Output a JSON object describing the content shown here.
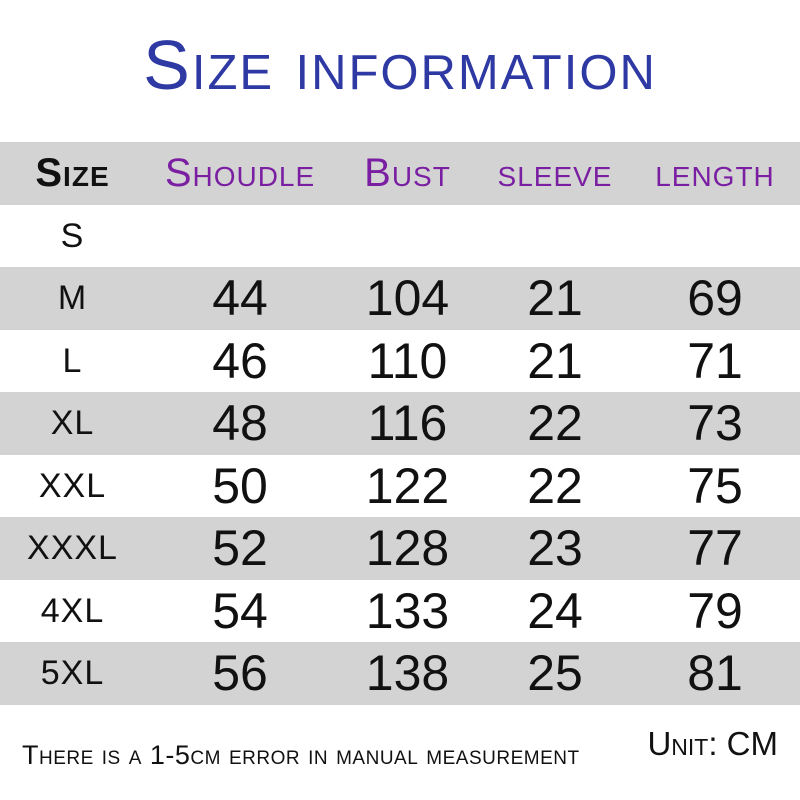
{
  "colors": {
    "title": "#2e39a3",
    "accent": "#7a1fa2",
    "text": "#111111",
    "stripe": "#d3d3d3",
    "bg": "#ffffff"
  },
  "title": {
    "text": "Size information"
  },
  "table": {
    "columns": [
      "Size",
      "Shoudle",
      "Bust",
      "sleeve",
      "length"
    ],
    "rows": [
      {
        "size": "S",
        "shoulder": "",
        "bust": "",
        "sleeve": "",
        "length": ""
      },
      {
        "size": "M",
        "shoulder": "44",
        "bust": "104",
        "sleeve": "21",
        "length": "69"
      },
      {
        "size": "L",
        "shoulder": "46",
        "bust": "110",
        "sleeve": "21",
        "length": "71"
      },
      {
        "size": "XL",
        "shoulder": "48",
        "bust": "116",
        "sleeve": "22",
        "length": "73"
      },
      {
        "size": "XXL",
        "shoulder": "50",
        "bust": "122",
        "sleeve": "22",
        "length": "75"
      },
      {
        "size": "XXXL",
        "shoulder": "52",
        "bust": "128",
        "sleeve": "23",
        "length": "77"
      },
      {
        "size": "4XL",
        "shoulder": "54",
        "bust": "133",
        "sleeve": "24",
        "length": "79"
      },
      {
        "size": "5XL",
        "shoulder": "56",
        "bust": "138",
        "sleeve": "25",
        "length": "81"
      }
    ]
  },
  "footer": {
    "note": "There is a 1-5cm error in manual measurement",
    "unit": "Unit: CM"
  },
  "chart_data": {
    "type": "table",
    "title": "Size information",
    "columns": [
      "Size",
      "Shoudle",
      "Bust",
      "sleeve",
      "length"
    ],
    "rows": [
      [
        "S",
        null,
        null,
        null,
        null
      ],
      [
        "M",
        44,
        104,
        21,
        69
      ],
      [
        "L",
        46,
        110,
        21,
        71
      ],
      [
        "XL",
        48,
        116,
        22,
        73
      ],
      [
        "XXL",
        50,
        122,
        22,
        75
      ],
      [
        "XXXL",
        52,
        128,
        23,
        77
      ],
      [
        "4XL",
        54,
        133,
        24,
        79
      ],
      [
        "5XL",
        56,
        138,
        25,
        81
      ]
    ],
    "unit": "cm",
    "annotations": [
      "There is a 1-5cm error in manual measurement",
      "Unit: CM"
    ],
    "layout_hints": {
      "striped_rows": true,
      "stripe_color": "#d3d3d3",
      "header_text_color": "#7a1fa2"
    }
  }
}
